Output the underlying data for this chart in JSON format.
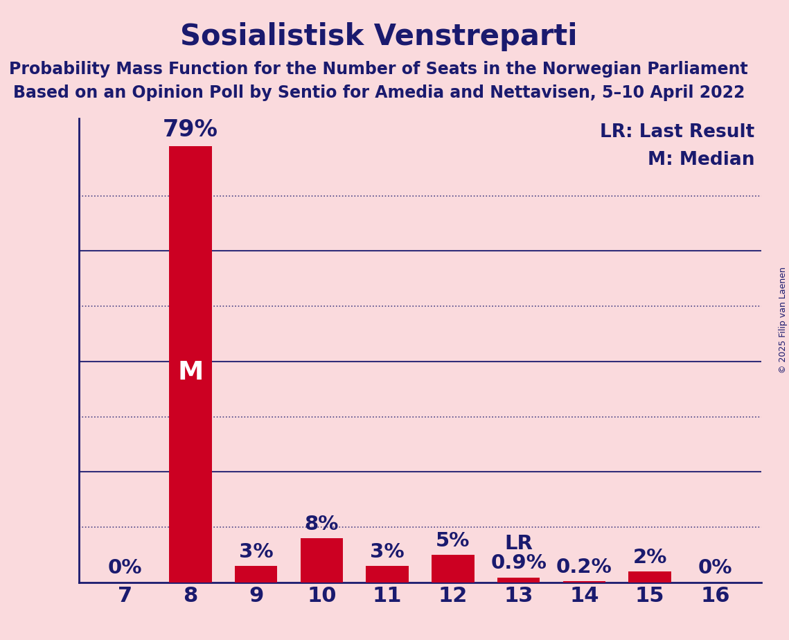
{
  "title": "Sosialistisk Venstreparti",
  "subtitle1": "Probability Mass Function for the Number of Seats in the Norwegian Parliament",
  "subtitle2": "Based on an Opinion Poll by Sentio for Amedia and Nettavisen, 5–10 April 2022",
  "categories": [
    7,
    8,
    9,
    10,
    11,
    12,
    13,
    14,
    15,
    16
  ],
  "values": [
    0.0,
    79.0,
    3.0,
    8.0,
    3.0,
    5.0,
    0.9,
    0.2,
    2.0,
    0.0
  ],
  "bar_color": "#CC0022",
  "background_color": "#FADADD",
  "title_color": "#1a1a6e",
  "axis_color": "#1a1a6e",
  "bar_label_color_dark": "#1a1a6e",
  "bar_label_color_white": "#FFFFFF",
  "median_bar": 8,
  "lr_bar": 13,
  "yticks_labeled": [
    20,
    40,
    60
  ],
  "yticks_dotted": [
    10,
    30,
    50,
    70
  ],
  "ylim": [
    0,
    84
  ],
  "grid_color": "#1a1a6e",
  "copyright_text": "© 2025 Filip van Laenen",
  "legend_line1": "LR: Last Result",
  "legend_line2": "M: Median",
  "value_labels": [
    "0%",
    "79%",
    "3%",
    "8%",
    "3%",
    "5%",
    "0.9%",
    "0.2%",
    "2%",
    "0%"
  ],
  "title_fontsize": 30,
  "subtitle_fontsize": 17,
  "tick_fontsize": 22,
  "bar_label_fontsize": 21,
  "legend_fontsize": 19,
  "copyright_fontsize": 9
}
